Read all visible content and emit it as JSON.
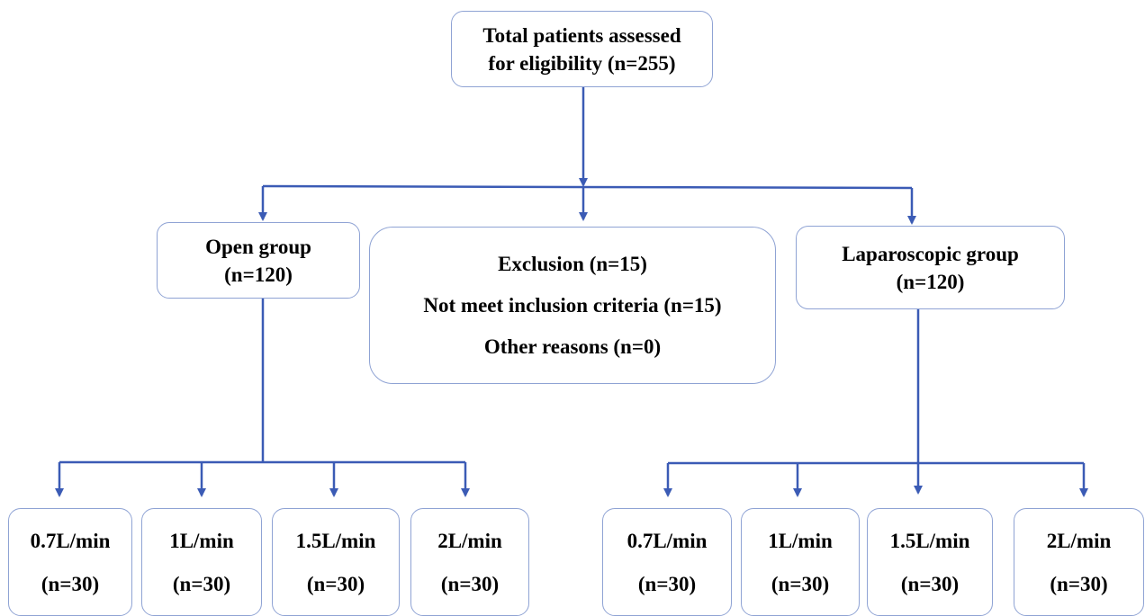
{
  "colors": {
    "box_border": "#8fa3d4",
    "connector": "#3b5bb5"
  },
  "total": {
    "line1": "Total patients assessed",
    "line2": "for eligibility (n=255)"
  },
  "open_group": {
    "title": "Open group",
    "count": "(n=120)"
  },
  "exclusion": {
    "title": "Exclusion (n=15)",
    "reason1": "Not meet inclusion criteria (n=15)",
    "reason2": "Other reasons (n=0)"
  },
  "laparoscopic_group": {
    "title": "Laparoscopic group",
    "count": "(n=120)"
  },
  "open_subgroups": [
    {
      "rate": "0.7L/min",
      "count": "(n=30)"
    },
    {
      "rate": "1L/min",
      "count": "(n=30)"
    },
    {
      "rate": "1.5L/min",
      "count": "(n=30)"
    },
    {
      "rate": "2L/min",
      "count": "(n=30)"
    }
  ],
  "laparoscopic_subgroups": [
    {
      "rate": "0.7L/min",
      "count": "(n=30)"
    },
    {
      "rate": "1L/min",
      "count": "(n=30)"
    },
    {
      "rate": "1.5L/min",
      "count": "(n=30)"
    },
    {
      "rate": "2L/min",
      "count": "(n=30)"
    }
  ]
}
